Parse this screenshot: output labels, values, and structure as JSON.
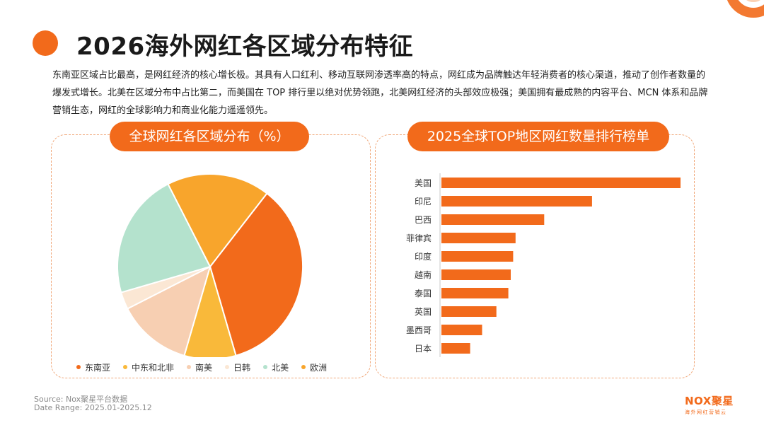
{
  "page": {
    "title": "2026海外网红各区域分布特征",
    "description": "东南亚区域占比最高，是网红经济的核心增长极。其具有人口红利、移动互联网渗透率高的特点，网红成为品牌触达年轻消费者的核心渠道，推动了创作者数量的爆发式增长。北美在区域分布中占比第二，而美国在 TOP 排行里以绝对优势领跑，北美网红经济的头部效应极强；美国拥有最成熟的内容平台、MCN 体系和品牌营销生态，网红的全球影响力和商业化能力遥遥领先。"
  },
  "footer": {
    "source": "Source:    Nox聚星平台数据",
    "date_range": "Date Range:  2025.01-2025.12",
    "brand_name": "NOX聚星",
    "brand_tagline": "海外网红营销云"
  },
  "colors": {
    "accent": "#f26a1b",
    "border": "#f0a87a"
  },
  "chart_data": [
    {
      "type": "pie",
      "title": "全球网红各区域分布（%）",
      "labels": [
        "东南亚",
        "中东和北非",
        "南美",
        "日韩",
        "北美",
        "欧洲"
      ],
      "values": [
        35,
        9,
        13,
        3,
        22,
        18
      ],
      "colors": [
        "#f26a1b",
        "#f9b93a",
        "#f7cfb2",
        "#fbe7d4",
        "#b4e2cd",
        "#f8a52c"
      ],
      "legend_position": "bottom"
    },
    {
      "type": "bar",
      "orientation": "horizontal",
      "title": "2025全球TOP地区网红数量排行榜单",
      "categories": [
        "美国",
        "印尼",
        "巴西",
        "菲律宾",
        "印度",
        "越南",
        "泰国",
        "英国",
        "墨西哥",
        "日本"
      ],
      "values": [
        100,
        63,
        43,
        31,
        30,
        29,
        28,
        23,
        17,
        12
      ],
      "color": "#f26a1b"
    }
  ]
}
